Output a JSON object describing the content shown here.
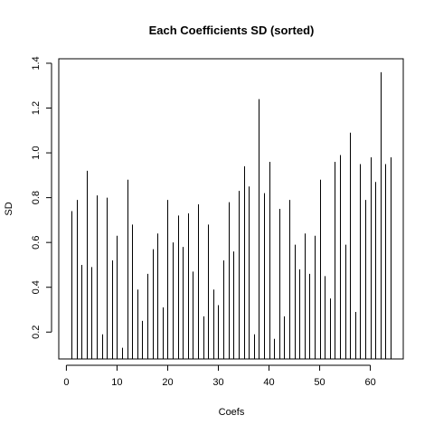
{
  "chart_data": {
    "type": "bar",
    "title": "Each Coefficients SD (sorted)",
    "xlabel": "Coefs",
    "ylabel": "SD",
    "xlim": [
      -1.5,
      66.5
    ],
    "ylim": [
      0.08,
      1.42
    ],
    "xticks": [
      0,
      10,
      20,
      30,
      40,
      50,
      60
    ],
    "xtick_labels": [
      "0",
      "10",
      "20",
      "30",
      "40",
      "50",
      "60"
    ],
    "yticks": [
      0.2,
      0.4,
      0.6,
      0.8,
      1.0,
      1.2,
      1.4
    ],
    "ytick_labels": [
      "0.2",
      "0.4",
      "0.6",
      "0.8",
      "1.0",
      "1.2",
      "1.4"
    ],
    "grid": false,
    "baseline": 0.08,
    "x": [
      1,
      2,
      3,
      4,
      5,
      6,
      7,
      8,
      9,
      10,
      11,
      12,
      13,
      14,
      15,
      16,
      17,
      18,
      19,
      20,
      21,
      22,
      23,
      24,
      25,
      26,
      27,
      28,
      29,
      30,
      31,
      32,
      33,
      34,
      35,
      36,
      37,
      38,
      39,
      40,
      41,
      42,
      43,
      44,
      45,
      46,
      47,
      48,
      49,
      50,
      51,
      52,
      53,
      54,
      55,
      56,
      57,
      58,
      59,
      60,
      61,
      62,
      63,
      64
    ],
    "values": [
      0.74,
      0.79,
      0.5,
      0.92,
      0.49,
      0.81,
      0.19,
      0.8,
      0.52,
      0.63,
      0.13,
      0.88,
      0.68,
      0.39,
      0.25,
      0.46,
      0.57,
      0.64,
      0.31,
      0.79,
      0.6,
      0.72,
      0.58,
      0.73,
      0.47,
      0.77,
      0.27,
      0.68,
      0.39,
      0.32,
      0.52,
      0.78,
      0.56,
      0.83,
      0.94,
      0.85,
      0.19,
      1.24,
      0.82,
      0.96,
      0.17,
      0.75,
      0.27,
      0.79,
      0.59,
      0.48,
      0.64,
      0.46,
      0.63,
      0.88,
      0.45,
      0.35,
      0.96,
      0.99,
      0.59,
      1.09,
      0.29,
      0.95,
      0.79,
      0.98,
      0.87,
      1.36,
      0.95,
      0.98
    ]
  }
}
